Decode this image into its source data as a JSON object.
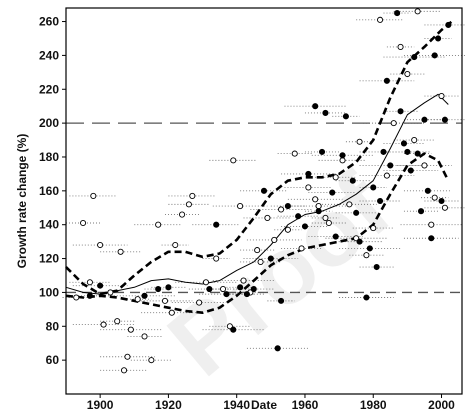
{
  "chart_data": {
    "type": "scatter",
    "title": "",
    "xlabel": "Date",
    "ylabel": "Growth rate change (%)",
    "xlim": [
      1890,
      2006
    ],
    "ylim": [
      40,
      268
    ],
    "x_ticks": [
      1900,
      1920,
      1940,
      1960,
      1980,
      2000
    ],
    "y_ticks": [
      60,
      80,
      100,
      120,
      140,
      160,
      180,
      200,
      220,
      240,
      260
    ],
    "grid": false,
    "legend": "none",
    "watermark": "Proof",
    "reference_lines": [
      {
        "y": 100,
        "style": "dashed"
      },
      {
        "y": 200,
        "style": "long-dashed"
      }
    ],
    "series": [
      {
        "kind": "points",
        "marker": "open-circle",
        "points": [
          [
            1893,
            97
          ],
          [
            1895,
            141
          ],
          [
            1897,
            106
          ],
          [
            1898,
            157
          ],
          [
            1900,
            128
          ],
          [
            1901,
            81
          ],
          [
            1903,
            100
          ],
          [
            1905,
            83
          ],
          [
            1906,
            124
          ],
          [
            1907,
            54
          ],
          [
            1908,
            62
          ],
          [
            1909,
            78
          ],
          [
            1911,
            96
          ],
          [
            1913,
            74
          ],
          [
            1915,
            60
          ],
          [
            1917,
            140
          ],
          [
            1919,
            95
          ],
          [
            1921,
            88
          ],
          [
            1922,
            128
          ],
          [
            1924,
            146
          ],
          [
            1926,
            152
          ],
          [
            1927,
            157
          ],
          [
            1929,
            94
          ],
          [
            1931,
            106
          ],
          [
            1934,
            120
          ],
          [
            1936,
            102
          ],
          [
            1938,
            80
          ],
          [
            1939,
            178
          ],
          [
            1941,
            151
          ],
          [
            1942,
            107
          ],
          [
            1944,
            100
          ],
          [
            1946,
            125
          ],
          [
            1947,
            118
          ],
          [
            1949,
            144
          ],
          [
            1951,
            131
          ],
          [
            1953,
            149
          ],
          [
            1955,
            137
          ],
          [
            1957,
            182
          ],
          [
            1959,
            126
          ],
          [
            1961,
            162
          ],
          [
            1963,
            155
          ],
          [
            1964,
            151
          ],
          [
            1966,
            144
          ],
          [
            1967,
            141
          ],
          [
            1969,
            168
          ],
          [
            1971,
            178
          ],
          [
            1973,
            152
          ],
          [
            1975,
            132
          ],
          [
            1976,
            189
          ],
          [
            1978,
            122
          ],
          [
            1980,
            138
          ],
          [
            1982,
            261
          ],
          [
            1984,
            169
          ],
          [
            1986,
            200
          ],
          [
            1988,
            245
          ],
          [
            1990,
            229
          ],
          [
            1992,
            190
          ],
          [
            1993,
            266
          ],
          [
            1995,
            175
          ],
          [
            1997,
            140
          ],
          [
            1998,
            156
          ],
          [
            2000,
            216
          ],
          [
            2001,
            150
          ]
        ]
      },
      {
        "kind": "points",
        "marker": "filled-circle",
        "points": [
          [
            1897,
            98
          ],
          [
            1900,
            104
          ],
          [
            1913,
            98
          ],
          [
            1917,
            102
          ],
          [
            1920,
            103
          ],
          [
            1932,
            102
          ],
          [
            1934,
            140
          ],
          [
            1937,
            99
          ],
          [
            1939,
            78
          ],
          [
            1941,
            103
          ],
          [
            1943,
            99
          ],
          [
            1945,
            102
          ],
          [
            1948,
            160
          ],
          [
            1950,
            120
          ],
          [
            1952,
            67
          ],
          [
            1953,
            95
          ],
          [
            1955,
            151
          ],
          [
            1958,
            145
          ],
          [
            1960,
            139
          ],
          [
            1961,
            170
          ],
          [
            1963,
            210
          ],
          [
            1964,
            148
          ],
          [
            1965,
            183
          ],
          [
            1966,
            206
          ],
          [
            1968,
            159
          ],
          [
            1969,
            133
          ],
          [
            1971,
            181
          ],
          [
            1972,
            204
          ],
          [
            1974,
            166
          ],
          [
            1975,
            147
          ],
          [
            1976,
            130
          ],
          [
            1978,
            97
          ],
          [
            1979,
            126
          ],
          [
            1980,
            162
          ],
          [
            1981,
            115
          ],
          [
            1982,
            154
          ],
          [
            1983,
            183
          ],
          [
            1984,
            225
          ],
          [
            1985,
            175
          ],
          [
            1987,
            265
          ],
          [
            1988,
            207
          ],
          [
            1989,
            188
          ],
          [
            1990,
            183
          ],
          [
            1991,
            172
          ],
          [
            1992,
            239
          ],
          [
            1993,
            182
          ],
          [
            1994,
            148
          ],
          [
            1995,
            202
          ],
          [
            1996,
            160
          ],
          [
            1997,
            132
          ],
          [
            1998,
            240
          ],
          [
            1999,
            250
          ],
          [
            2000,
            154
          ],
          [
            2001,
            202
          ],
          [
            2002,
            258
          ]
        ]
      },
      {
        "kind": "line",
        "style": "thin-solid",
        "points": [
          [
            1890,
            103
          ],
          [
            1895,
            100
          ],
          [
            1900,
            99
          ],
          [
            1905,
            101
          ],
          [
            1910,
            103
          ],
          [
            1915,
            107
          ],
          [
            1920,
            108
          ],
          [
            1925,
            106
          ],
          [
            1930,
            105
          ],
          [
            1935,
            107
          ],
          [
            1940,
            113
          ],
          [
            1945,
            118
          ],
          [
            1950,
            128
          ],
          [
            1955,
            140
          ],
          [
            1960,
            146
          ],
          [
            1965,
            148
          ],
          [
            1970,
            152
          ],
          [
            1975,
            158
          ],
          [
            1980,
            166
          ],
          [
            1985,
            185
          ],
          [
            1990,
            205
          ],
          [
            1995,
            212
          ],
          [
            1999,
            217
          ],
          [
            2002,
            211
          ]
        ]
      },
      {
        "kind": "line",
        "style": "thick-dashed",
        "points": [
          [
            1890,
            115
          ],
          [
            1895,
            105
          ],
          [
            1900,
            99
          ],
          [
            1905,
            101
          ],
          [
            1910,
            110
          ],
          [
            1915,
            118
          ],
          [
            1920,
            124
          ],
          [
            1925,
            124
          ],
          [
            1930,
            121
          ],
          [
            1935,
            123
          ],
          [
            1940,
            131
          ],
          [
            1945,
            144
          ],
          [
            1950,
            158
          ],
          [
            1955,
            166
          ],
          [
            1960,
            168
          ],
          [
            1965,
            168
          ],
          [
            1970,
            170
          ],
          [
            1975,
            177
          ],
          [
            1980,
            190
          ],
          [
            1985,
            215
          ],
          [
            1990,
            236
          ],
          [
            1995,
            245
          ],
          [
            2000,
            255
          ],
          [
            2003,
            260
          ]
        ]
      },
      {
        "kind": "line",
        "style": "thick-dashed",
        "points": [
          [
            1890,
            98
          ],
          [
            1895,
            97
          ],
          [
            1900,
            98
          ],
          [
            1905,
            97
          ],
          [
            1910,
            95
          ],
          [
            1915,
            93
          ],
          [
            1920,
            91
          ],
          [
            1925,
            89
          ],
          [
            1930,
            88
          ],
          [
            1935,
            91
          ],
          [
            1940,
            98
          ],
          [
            1945,
            107
          ],
          [
            1950,
            116
          ],
          [
            1955,
            122
          ],
          [
            1960,
            126
          ],
          [
            1965,
            128
          ],
          [
            1970,
            130
          ],
          [
            1975,
            132
          ],
          [
            1980,
            140
          ],
          [
            1985,
            158
          ],
          [
            1990,
            175
          ],
          [
            1995,
            182
          ],
          [
            1999,
            178
          ],
          [
            2002,
            166
          ]
        ]
      }
    ]
  }
}
